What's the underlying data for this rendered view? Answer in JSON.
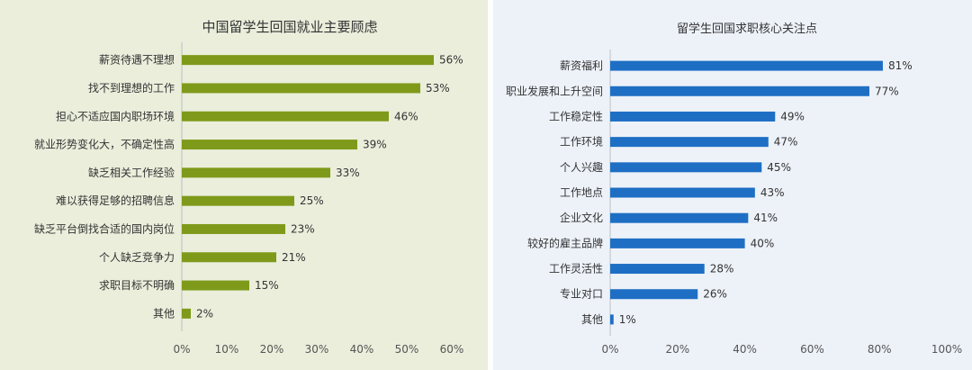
{
  "chart_data": [
    {
      "type": "bar",
      "orientation": "horizontal",
      "title": "中国留学生回国就业主要顾虑",
      "categories": [
        "薪资待遇不理想",
        "找不到理想的工作",
        "担心不适应国内职场环境",
        "就业形势变化大，不确定性高",
        "缺乏相关工作经验",
        "难以获得足够的招聘信息",
        "缺乏平台倒找合适的国内岗位",
        "个人缺乏竞争力",
        "求职目标不明确",
        "其他"
      ],
      "values": [
        56,
        53,
        46,
        39,
        33,
        25,
        23,
        21,
        15,
        2
      ],
      "value_labels": [
        "56%",
        "53%",
        "46%",
        "39%",
        "33%",
        "25%",
        "23%",
        "21%",
        "15%",
        "2%"
      ],
      "xlim": [
        0,
        60
      ],
      "xticks": [
        "0%",
        "10%",
        "20%",
        "30%",
        "40%",
        "50%",
        "60%"
      ],
      "bar_color": "#7f9a1a",
      "grid": false
    },
    {
      "type": "bar",
      "orientation": "horizontal",
      "title": "留学生回国求职核心关注点",
      "categories": [
        "薪资福利",
        "职业发展和上升空间",
        "工作稳定性",
        "工作环境",
        "个人兴趣",
        "工作地点",
        "企业文化",
        "较好的雇主品牌",
        "工作灵活性",
        "专业对口",
        "其他"
      ],
      "values": [
        81,
        77,
        49,
        47,
        45,
        43,
        41,
        40,
        28,
        26,
        1
      ],
      "value_labels": [
        "81%",
        "77%",
        "49%",
        "47%",
        "45%",
        "43%",
        "41%",
        "40%",
        "28%",
        "26%",
        "1%"
      ],
      "xlim": [
        0,
        100
      ],
      "xticks": [
        "0%",
        "20%",
        "40%",
        "60%",
        "80%",
        "100%"
      ],
      "bar_color": "#1e6fc4",
      "grid": false
    }
  ]
}
